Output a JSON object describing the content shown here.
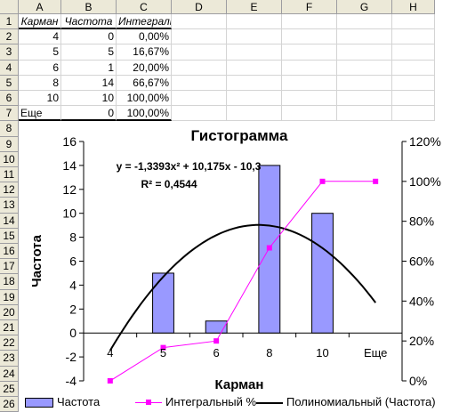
{
  "columns": [
    "A",
    "B",
    "C",
    "D",
    "E",
    "F",
    "G",
    "H"
  ],
  "rows": [
    "1",
    "2",
    "3",
    "4",
    "5",
    "6",
    "7",
    "8",
    "9",
    "10",
    "11",
    "12",
    "13",
    "14",
    "15",
    "16",
    "17",
    "18",
    "19",
    "20",
    "21",
    "22",
    "23",
    "24",
    "25",
    "26"
  ],
  "table": {
    "headers": [
      "Карман",
      "Частота",
      "Интегральный %"
    ],
    "rows": [
      [
        "4",
        "0",
        "0,00%"
      ],
      [
        "5",
        "5",
        "16,67%"
      ],
      [
        "6",
        "1",
        "20,00%"
      ],
      [
        "8",
        "14",
        "66,67%"
      ],
      [
        "10",
        "10",
        "100,00%"
      ],
      [
        "Еще",
        "0",
        "100,00%"
      ]
    ]
  },
  "chart_data": {
    "type": "bar",
    "title": "Гистограмма",
    "xlabel": "Карман",
    "ylabel": "Частота",
    "categories": [
      "4",
      "5",
      "6",
      "8",
      "10",
      "Еще"
    ],
    "ylim": [
      -4,
      16
    ],
    "yticks": [
      "16",
      "14",
      "12",
      "10",
      "8",
      "6",
      "4",
      "2",
      "0",
      "-2",
      "-4"
    ],
    "y2lim": [
      0,
      1.2
    ],
    "y2ticks": [
      "120%",
      "100%",
      "80%",
      "60%",
      "40%",
      "20%",
      "0%"
    ],
    "series": [
      {
        "name": "Частота",
        "type": "bar",
        "values": [
          0,
          5,
          1,
          14,
          10,
          0
        ],
        "color": "#9999ff"
      },
      {
        "name": "Интегральный %",
        "type": "line",
        "axis": "secondary",
        "values": [
          0,
          0.1667,
          0.2,
          0.6667,
          1.0,
          1.0
        ],
        "color": "#ff00ff"
      },
      {
        "name": "Полиномиальный (Частота)",
        "type": "trendline",
        "color": "#000000",
        "coefficients": {
          "a": -1.3393,
          "b": 10.175,
          "c": -10.3
        }
      }
    ],
    "equation": "y = -1,3393x² + 10,175x - 10,3",
    "r_squared": "R² = 0,4544",
    "grid": false,
    "legend": "bottom"
  }
}
